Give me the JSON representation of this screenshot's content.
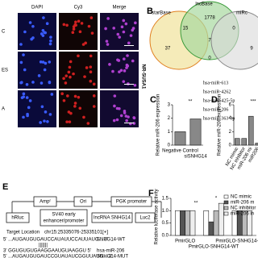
{
  "panel_a": {
    "columns": [
      "DAPI",
      "Cy3",
      "Merge"
    ],
    "rows": [
      "C",
      "ES",
      "A"
    ],
    "side_label": "NR-SUSA1"
  },
  "panel_b": {
    "letter": "B",
    "sets": [
      "starBase",
      "lncBase",
      "miRc"
    ],
    "counts": [
      1778,
      15,
      0,
      7,
      37,
      9,
      0
    ],
    "mirnas": [
      {
        "name": "hsa-miR-613"
      },
      {
        "name": "hsa-miR-4262"
      },
      {
        "name": "hsa-miR-425-5p"
      },
      {
        "name": "hsa-miR-206",
        "color": "#e0201c"
      },
      {
        "name": "hsa-miR-363-3p"
      }
    ]
  },
  "panel_c": {
    "letter": "C",
    "ylabel": "Relative miR-206 expression",
    "categories": [
      "Negative Control",
      "siSNHG14"
    ],
    "values": [
      1,
      1.95
    ],
    "ylim": [
      0,
      3
    ],
    "yticks": [
      0,
      1,
      2,
      3
    ],
    "significance": "**"
  },
  "panel_d": {
    "letter": "D",
    "ylabel": "Relative miR-206 expression",
    "categories": [
      "NC mimic",
      "NC inhibitor",
      "miR-206 mi",
      "miR206"
    ],
    "values": [
      1,
      1,
      4.3,
      0.3
    ],
    "ylim": [
      0,
      6
    ],
    "yticks": [
      0,
      2,
      4,
      6
    ],
    "significance": "***"
  },
  "panel_e": {
    "letter": "E",
    "elements": [
      "Ampʳ",
      "Ori",
      "PGK promoter",
      "hRluc",
      "SV40 early",
      "enhancer/promoter",
      "lncRNA SNHG14",
      "Luc2"
    ],
    "target_label": "Target Location",
    "target": "chr15:25335076-25335101[+]",
    "alignment": [
      {
        "seq": "5' ...AUGAUGUGAUCCAUAUUCCAUUAUG... 3'",
        "name": "SNHG14-WT"
      },
      {
        "seq": "|||||||"
      },
      {
        "seq": "3'    GGUGUGUGAAGGAAUGUAAGGU    5'",
        "name": "hsa-miR-206"
      },
      {
        "seq": "5' ...AUGAUGUGAUCCGUAUAUCGGUUAUG... 3'",
        "name": "SNHG14-MUT"
      }
    ]
  },
  "panel_f": {
    "letter": "F",
    "ylabel": "Relative luciferase activity",
    "categories": [
      "PmirGLO",
      "PmirGLO-SNHG14-WT",
      "PmirGLO-SNHG14-MUT"
    ],
    "series": [
      {
        "name": "NC mimic",
        "color": "#ffffff",
        "values": [
          1,
          1,
          1
        ]
      },
      {
        "name": "miR-206 m",
        "color": "#555555",
        "values": [
          1,
          0.55,
          1
        ]
      },
      {
        "name": "NC inhibitor",
        "color": "#bbbbbb",
        "values": [
          1,
          1,
          1
        ]
      },
      {
        "name": "miR-206 in",
        "color": "#eeeeee",
        "values": [
          1,
          1.3,
          1
        ]
      }
    ],
    "ylim": [
      0,
      1.5
    ],
    "yticks": [
      {
        "value": 0,
        "label": "0.0"
      },
      {
        "value": 0.5,
        "label": "0.5"
      },
      {
        "value": 1,
        "label": "1.0"
      },
      {
        "value": 1.5,
        "label": "1.5"
      }
    ],
    "significance": [
      "**",
      "*"
    ]
  }
}
